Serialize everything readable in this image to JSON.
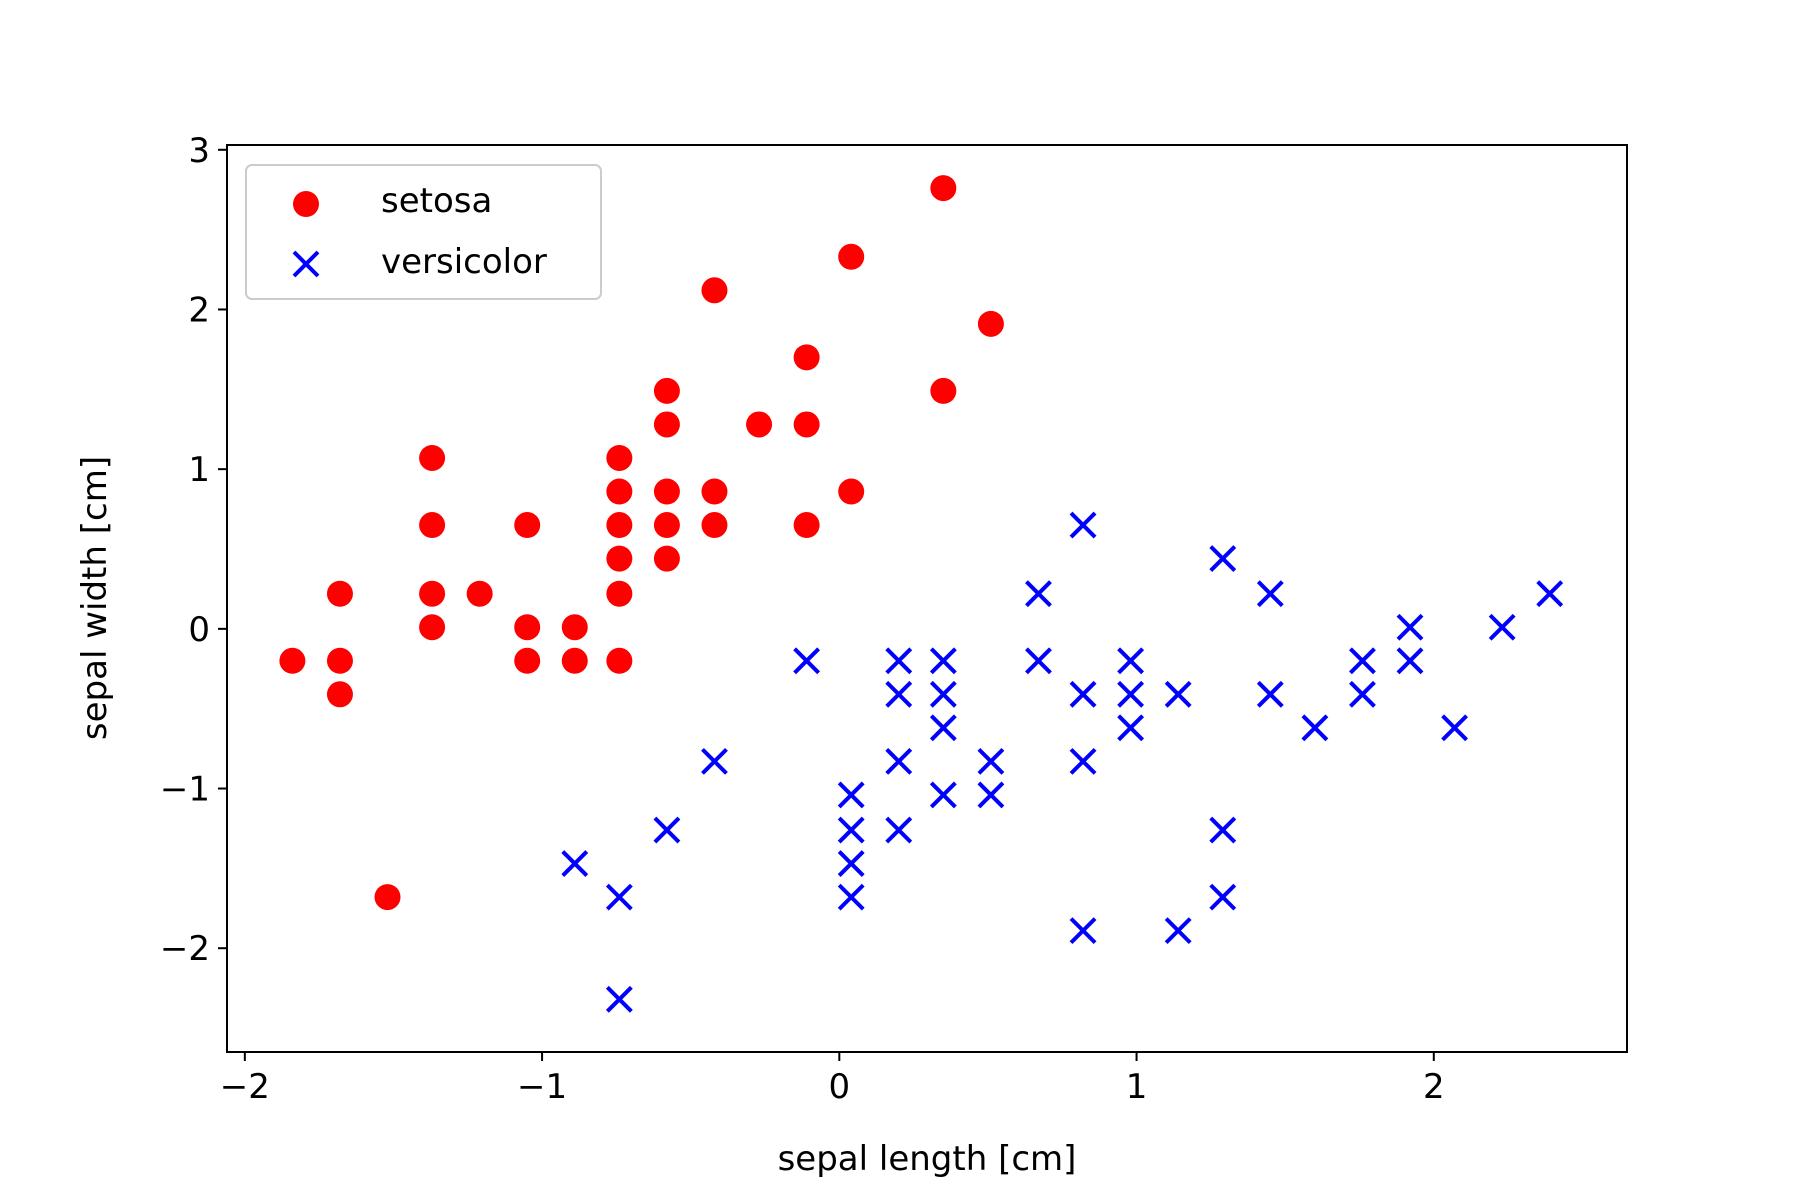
{
  "chart_data": {
    "type": "scatter",
    "title": "",
    "xlabel": "sepal length [cm]",
    "ylabel": "sepal width [cm]",
    "xlim": [
      -2.06,
      2.65
    ],
    "ylim": [
      -2.65,
      3.03
    ],
    "xticks": [
      -2,
      -1,
      0,
      1,
      2
    ],
    "yticks": [
      -2,
      -1,
      0,
      1,
      2,
      3
    ],
    "xtick_labels": [
      "−2",
      "−1",
      "0",
      "1",
      "2"
    ],
    "ytick_labels": [
      "−2",
      "−1",
      "0",
      "1",
      "2",
      "3"
    ],
    "grid": false,
    "legend_position": "upper-left",
    "series": [
      {
        "name": "setosa",
        "marker": "circle",
        "color": "#ff0000",
        "points": [
          [
            -1.84,
            -0.2
          ],
          [
            -1.68,
            0.22
          ],
          [
            -1.68,
            -0.2
          ],
          [
            -1.68,
            -0.41
          ],
          [
            -1.52,
            -1.68
          ],
          [
            -1.37,
            1.07
          ],
          [
            -1.37,
            0.65
          ],
          [
            -1.37,
            0.22
          ],
          [
            -1.37,
            0.01
          ],
          [
            -1.21,
            0.22
          ],
          [
            -1.05,
            0.65
          ],
          [
            -1.05,
            0.01
          ],
          [
            -1.05,
            -0.2
          ],
          [
            -0.89,
            0.01
          ],
          [
            -0.89,
            -0.2
          ],
          [
            -0.74,
            1.07
          ],
          [
            -0.74,
            0.86
          ],
          [
            -0.74,
            0.65
          ],
          [
            -0.74,
            0.44
          ],
          [
            -0.74,
            0.22
          ],
          [
            -0.74,
            -0.2
          ],
          [
            -0.58,
            1.49
          ],
          [
            -0.58,
            1.28
          ],
          [
            -0.58,
            0.86
          ],
          [
            -0.58,
            0.65
          ],
          [
            -0.58,
            0.44
          ],
          [
            -0.42,
            2.12
          ],
          [
            -0.42,
            0.86
          ],
          [
            -0.42,
            0.65
          ],
          [
            -0.27,
            1.28
          ],
          [
            -0.11,
            1.7
          ],
          [
            -0.11,
            1.28
          ],
          [
            -0.11,
            0.65
          ],
          [
            0.04,
            2.33
          ],
          [
            0.04,
            0.86
          ],
          [
            0.35,
            2.76
          ],
          [
            0.35,
            1.49
          ],
          [
            0.51,
            1.91
          ]
        ]
      },
      {
        "name": "versicolor",
        "marker": "x",
        "color": "#0000ff",
        "points": [
          [
            -0.89,
            -1.47
          ],
          [
            -0.74,
            -1.68
          ],
          [
            -0.74,
            -2.32
          ],
          [
            -0.58,
            -1.26
          ],
          [
            -0.42,
            -0.83
          ],
          [
            -0.11,
            -0.2
          ],
          [
            0.04,
            -1.04
          ],
          [
            0.04,
            -1.26
          ],
          [
            0.04,
            -1.47
          ],
          [
            0.04,
            -1.68
          ],
          [
            0.2,
            -0.2
          ],
          [
            0.2,
            -0.41
          ],
          [
            0.2,
            -0.83
          ],
          [
            0.2,
            -1.26
          ],
          [
            0.35,
            -0.2
          ],
          [
            0.35,
            -0.41
          ],
          [
            0.35,
            -0.62
          ],
          [
            0.35,
            -1.04
          ],
          [
            0.51,
            -0.83
          ],
          [
            0.51,
            -1.04
          ],
          [
            0.67,
            0.22
          ],
          [
            0.67,
            -0.2
          ],
          [
            0.82,
            0.65
          ],
          [
            0.82,
            -0.41
          ],
          [
            0.82,
            -0.83
          ],
          [
            0.82,
            -1.89
          ],
          [
            0.98,
            -0.2
          ],
          [
            0.98,
            -0.41
          ],
          [
            0.98,
            -0.62
          ],
          [
            1.14,
            -0.41
          ],
          [
            1.14,
            -1.89
          ],
          [
            1.29,
            0.44
          ],
          [
            1.29,
            -1.26
          ],
          [
            1.29,
            -1.68
          ],
          [
            1.45,
            0.22
          ],
          [
            1.45,
            -0.41
          ],
          [
            1.6,
            -0.62
          ],
          [
            1.76,
            -0.2
          ],
          [
            1.76,
            -0.41
          ],
          [
            1.92,
            0.01
          ],
          [
            1.92,
            -0.2
          ],
          [
            2.07,
            -0.62
          ],
          [
            2.23,
            0.01
          ],
          [
            2.39,
            0.22
          ]
        ]
      }
    ]
  }
}
